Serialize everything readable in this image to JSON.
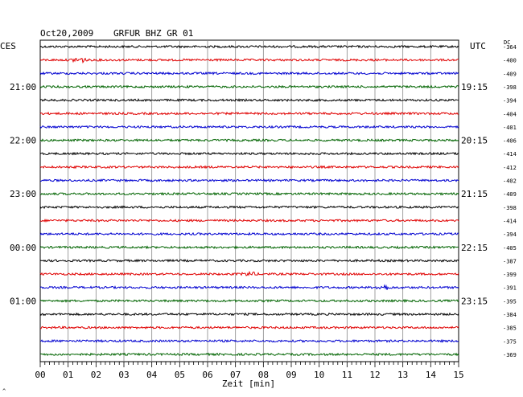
{
  "header": {
    "date": "Oct20,2009",
    "station": "GRFUR BHZ GR 01",
    "left_tz": "CES",
    "right_tz": "UTC",
    "dc_label": "DC"
  },
  "x_axis_label": "Zeit [min]",
  "footer_mark": "^",
  "chart_data": {
    "type": "line",
    "title": "Oct20,2009   GRFUR BHZ GR 01",
    "xlabel": "Zeit [min]",
    "ylabel": "",
    "xlim": [
      0,
      15
    ],
    "x_ticks": [
      "00",
      "01",
      "02",
      "03",
      "04",
      "05",
      "06",
      "07",
      "08",
      "09",
      "10",
      "11",
      "12",
      "13",
      "14",
      "15"
    ],
    "trace_count": 24,
    "trace_colors": [
      "#000000",
      "#e00000",
      "#0000d0",
      "#006400"
    ],
    "left_time_labels": [
      {
        "trace": 3,
        "label": "21:00"
      },
      {
        "trace": 7,
        "label": "22:00"
      },
      {
        "trace": 11,
        "label": "23:00"
      },
      {
        "trace": 15,
        "label": "00:00"
      },
      {
        "trace": 19,
        "label": "01:00"
      }
    ],
    "right_time_labels": [
      {
        "trace": 3,
        "label": "19:15"
      },
      {
        "trace": 7,
        "label": "20:15"
      },
      {
        "trace": 11,
        "label": "21:15"
      },
      {
        "trace": 15,
        "label": "22:15"
      },
      {
        "trace": 19,
        "label": "23:15"
      }
    ],
    "dc_offsets": [
      "-364",
      "-400",
      "-409",
      "-398",
      "-394",
      "-404",
      "-401",
      "-406",
      "-414",
      "-412",
      "-402",
      "-409",
      "-398",
      "-414",
      "-394",
      "-405",
      "-387",
      "-399",
      "-391",
      "-395",
      "-384",
      "-385",
      "-375",
      "-369"
    ],
    "events": [
      {
        "trace": 1,
        "minute": 1.4,
        "amplitude": 3.5
      },
      {
        "trace": 17,
        "minute": 7.5,
        "amplitude": 2.2
      },
      {
        "trace": 18,
        "minute": 12.3,
        "amplitude": 3.0
      }
    ]
  }
}
